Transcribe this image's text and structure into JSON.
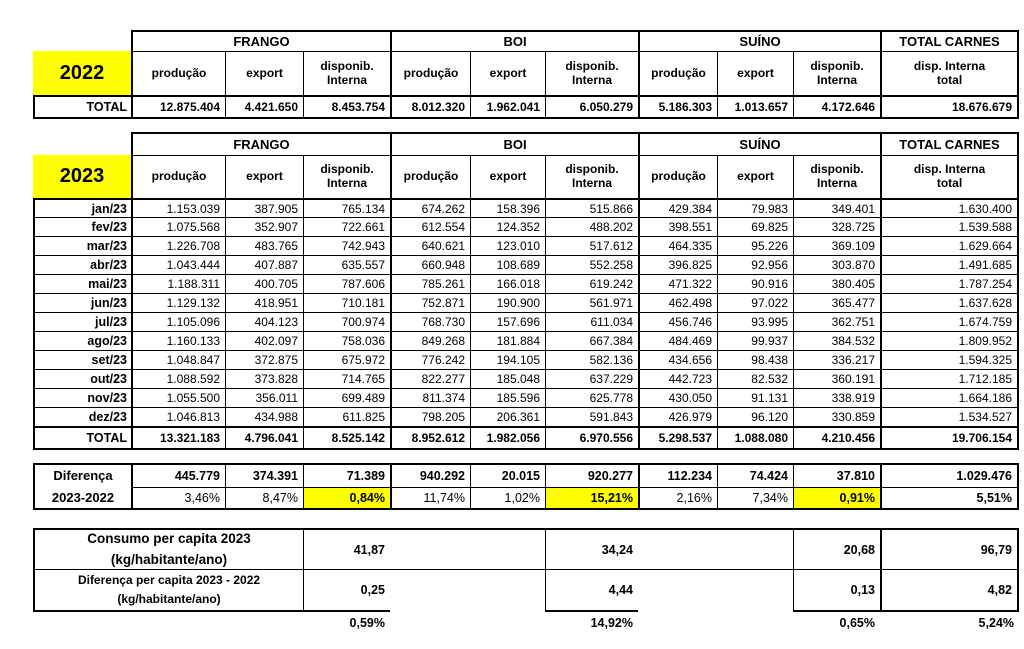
{
  "colors": {
    "highlight": "#ffff00",
    "border": "#000000",
    "text": "#000000",
    "background": "#ffffff"
  },
  "chart_data": {
    "type": "table",
    "column_groups": [
      {
        "label": "FRANGO",
        "columns": [
          "produção",
          "export",
          "disponib.\nInterna"
        ]
      },
      {
        "label": "BOI",
        "columns": [
          "produção",
          "export",
          "disponib.\nInterna"
        ]
      },
      {
        "label": "SUÍNO",
        "columns": [
          "produção",
          "export",
          "disponib.\nInterna"
        ]
      },
      {
        "label": "TOTAL CARNES",
        "columns": [
          "disp. Interna\ntotal"
        ]
      }
    ],
    "tables": {
      "y2022": {
        "year": "2022",
        "rows": [
          {
            "label": "TOTAL",
            "values": [
              "12.875.404",
              "4.421.650",
              "8.453.754",
              "8.012.320",
              "1.962.041",
              "6.050.279",
              "5.186.303",
              "1.013.657",
              "4.172.646",
              "18.676.679"
            ]
          }
        ]
      },
      "y2023": {
        "year": "2023",
        "rows": [
          {
            "label": "jan/23",
            "values": [
              "1.153.039",
              "387.905",
              "765.134",
              "674.262",
              "158.396",
              "515.866",
              "429.384",
              "79.983",
              "349.401",
              "1.630.400"
            ]
          },
          {
            "label": "fev/23",
            "values": [
              "1.075.568",
              "352.907",
              "722.661",
              "612.554",
              "124.352",
              "488.202",
              "398.551",
              "69.825",
              "328.725",
              "1.539.588"
            ]
          },
          {
            "label": "mar/23",
            "values": [
              "1.226.708",
              "483.765",
              "742.943",
              "640.621",
              "123.010",
              "517.612",
              "464.335",
              "95.226",
              "369.109",
              "1.629.664"
            ]
          },
          {
            "label": "abr/23",
            "values": [
              "1.043.444",
              "407.887",
              "635.557",
              "660.948",
              "108.689",
              "552.258",
              "396.825",
              "92.956",
              "303.870",
              "1.491.685"
            ]
          },
          {
            "label": "mai/23",
            "values": [
              "1.188.311",
              "400.705",
              "787.606",
              "785.261",
              "166.018",
              "619.242",
              "471.322",
              "90.916",
              "380.405",
              "1.787.254"
            ]
          },
          {
            "label": "jun/23",
            "values": [
              "1.129.132",
              "418.951",
              "710.181",
              "752.871",
              "190.900",
              "561.971",
              "462.498",
              "97.022",
              "365.477",
              "1.637.628"
            ]
          },
          {
            "label": "jul/23",
            "values": [
              "1.105.096",
              "404.123",
              "700.974",
              "768.730",
              "157.696",
              "611.034",
              "456.746",
              "93.995",
              "362.751",
              "1.674.759"
            ]
          },
          {
            "label": "ago/23",
            "values": [
              "1.160.133",
              "402.097",
              "758.036",
              "849.268",
              "181.884",
              "667.384",
              "484.469",
              "99.937",
              "384.532",
              "1.809.952"
            ]
          },
          {
            "label": "set/23",
            "values": [
              "1.048.847",
              "372.875",
              "675.972",
              "776.242",
              "194.105",
              "582.136",
              "434.656",
              "98.438",
              "336.217",
              "1.594.325"
            ]
          },
          {
            "label": "out/23",
            "values": [
              "1.088.592",
              "373.828",
              "714.765",
              "822.277",
              "185.048",
              "637.229",
              "442.723",
              "82.532",
              "360.191",
              "1.712.185"
            ]
          },
          {
            "label": "nov/23",
            "values": [
              "1.055.500",
              "356.011",
              "699.489",
              "811.374",
              "185.596",
              "625.778",
              "430.050",
              "91.131",
              "338.919",
              "1.664.186"
            ]
          },
          {
            "label": "dez/23",
            "values": [
              "1.046.813",
              "434.988",
              "611.825",
              "798.205",
              "206.361",
              "591.843",
              "426.979",
              "96.120",
              "330.859",
              "1.534.527"
            ]
          },
          {
            "label": "TOTAL",
            "values": [
              "13.321.183",
              "4.796.041",
              "8.525.142",
              "8.952.612",
              "1.982.056",
              "6.970.556",
              "5.298.537",
              "1.088.080",
              "4.210.456",
              "19.706.154"
            ]
          }
        ]
      },
      "difference": {
        "label": "Diferença\n2023-2022",
        "values": [
          "445.779",
          "374.391",
          "71.389",
          "940.292",
          "20.015",
          "920.277",
          "112.234",
          "74.424",
          "37.810",
          "1.029.476"
        ],
        "percents": [
          {
            "text": "3,46%",
            "highlight": false,
            "bold": false
          },
          {
            "text": "8,47%",
            "highlight": false,
            "bold": false
          },
          {
            "text": "0,84%",
            "highlight": true,
            "bold": true
          },
          {
            "text": "11,74%",
            "highlight": false,
            "bold": false
          },
          {
            "text": "1,02%",
            "highlight": false,
            "bold": false
          },
          {
            "text": "15,21%",
            "highlight": true,
            "bold": true
          },
          {
            "text": "2,16%",
            "highlight": false,
            "bold": false
          },
          {
            "text": "7,34%",
            "highlight": false,
            "bold": false
          },
          {
            "text": "0,91%",
            "highlight": true,
            "bold": true
          },
          {
            "text": "5,51%",
            "highlight": false,
            "bold": true
          }
        ]
      },
      "per_capita": {
        "rows": [
          {
            "label": "Consumo per capita 2023\n(kg/habitante/ano)",
            "values": [
              "41,87",
              "34,24",
              "20,68",
              "96,79"
            ]
          },
          {
            "label": "Diferença per capita 2023 - 2022\n(kg/habitante/ano)",
            "values": [
              "0,25",
              "4,44",
              "0,13",
              "4,82"
            ]
          }
        ],
        "percents": [
          "0,59%",
          "14,92%",
          "0,65%",
          "5,24%"
        ]
      }
    }
  }
}
